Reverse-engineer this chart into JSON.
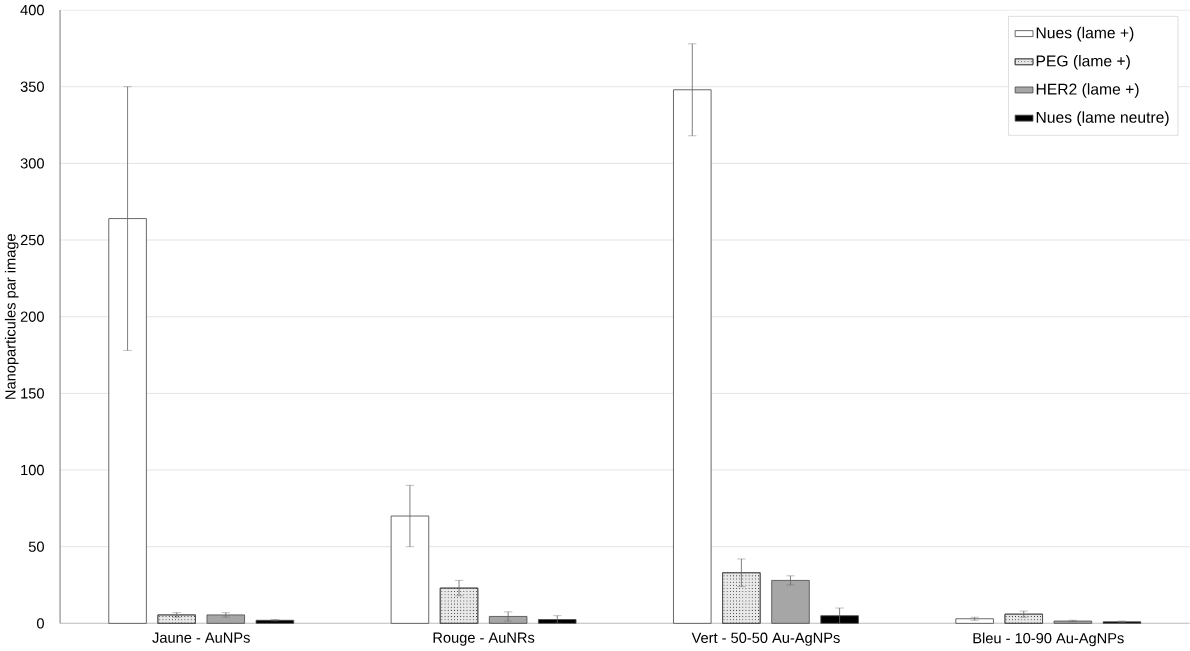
{
  "chart_data": {
    "type": "bar",
    "ylabel": "Nanoparticules par image",
    "categories": [
      "Jaune - AuNPs",
      "Rouge - AuNRs",
      "Vert - 50-50 Au-AgNPs",
      "Bleu - 10-90 Au-AgNPs"
    ],
    "series": [
      {
        "name": "Nues (lame +)",
        "color": "#ffffff",
        "values": [
          264,
          70,
          348,
          3
        ],
        "errors": [
          86,
          20,
          30,
          1
        ]
      },
      {
        "name": "PEG (lame +)",
        "color": "#e8e8e8",
        "values": [
          5.5,
          23,
          33,
          6
        ],
        "errors": [
          1.5,
          5,
          9,
          2
        ]
      },
      {
        "name": "HER2 (lame +)",
        "color": "#a6a6a6",
        "values": [
          5.5,
          4.5,
          28,
          1.5
        ],
        "errors": [
          1.5,
          3,
          3,
          0.5
        ]
      },
      {
        "name": "Nues (lame neutre)",
        "color": "#000000",
        "values": [
          2,
          2.5,
          5,
          1
        ],
        "errors": [
          0.5,
          2.5,
          5,
          0.5
        ]
      }
    ],
    "ylim": [
      0,
      400
    ],
    "yticks": [
      0,
      50,
      100,
      150,
      200,
      250,
      300,
      350,
      400
    ],
    "grid": "y",
    "legend": "top right"
  }
}
